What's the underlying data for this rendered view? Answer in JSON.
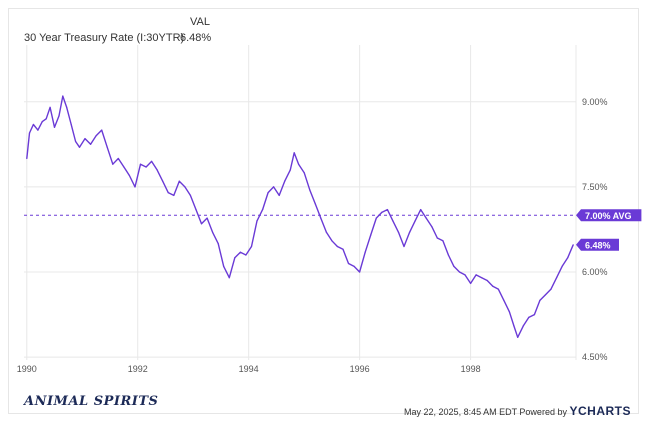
{
  "header": {
    "col_label": "VAL",
    "series_name": "30 Year Treasury Rate (I:30YTR)",
    "series_value": "6.48%"
  },
  "footer": {
    "brand": "ANIMAL SPIRITS",
    "timestamp": "May 22, 2025, 8:45 AM EDT Powered by",
    "powered_by_logo": "YCHARTS"
  },
  "colors": {
    "series": "#6a3ad6",
    "grid": "#e8e8e8",
    "axis_text": "#555555",
    "badge_bg": "#6a3ad6",
    "badge_text": "#ffffff"
  },
  "chart_data": {
    "type": "line",
    "title": "",
    "xlabel": "",
    "ylabel": "",
    "xlim": [
      1989.95,
      1999.9
    ],
    "ylim": [
      4.45,
      10.0
    ],
    "x_ticks": [
      {
        "value": 1990,
        "label": "1990"
      },
      {
        "value": 1992,
        "label": "1992"
      },
      {
        "value": 1994,
        "label": "1994"
      },
      {
        "value": 1996,
        "label": "1996"
      },
      {
        "value": 1998,
        "label": "1998"
      }
    ],
    "y_ticks": [
      {
        "value": 4.5,
        "label": "4.50%"
      },
      {
        "value": 6.0,
        "label": "6.00%"
      },
      {
        "value": 7.5,
        "label": "7.50%"
      },
      {
        "value": 9.0,
        "label": "9.00%"
      }
    ],
    "grid": true,
    "average": {
      "value": 7.0,
      "label": "7.00% AVG"
    },
    "last_value": {
      "value": 6.48,
      "label": "6.48%"
    },
    "series": [
      {
        "name": "30 Year Treasury Rate (I:30YTR)",
        "x": [
          1990.0,
          1990.05,
          1990.12,
          1990.2,
          1990.28,
          1990.35,
          1990.42,
          1990.5,
          1990.58,
          1990.65,
          1990.72,
          1990.8,
          1990.88,
          1990.95,
          1991.05,
          1991.15,
          1991.25,
          1991.35,
          1991.45,
          1991.55,
          1991.65,
          1991.75,
          1991.85,
          1991.95,
          1992.05,
          1992.15,
          1992.25,
          1992.35,
          1992.45,
          1992.55,
          1992.65,
          1992.75,
          1992.85,
          1992.95,
          1993.05,
          1993.15,
          1993.25,
          1993.35,
          1993.45,
          1993.55,
          1993.65,
          1993.75,
          1993.85,
          1993.95,
          1994.05,
          1994.15,
          1994.25,
          1994.35,
          1994.45,
          1994.55,
          1994.65,
          1994.75,
          1994.82,
          1994.9,
          1995.0,
          1995.1,
          1995.2,
          1995.3,
          1995.4,
          1995.5,
          1995.6,
          1995.7,
          1995.8,
          1995.9,
          1996.0,
          1996.1,
          1996.2,
          1996.3,
          1996.4,
          1996.5,
          1996.6,
          1996.7,
          1996.8,
          1996.9,
          1997.0,
          1997.1,
          1997.2,
          1997.3,
          1997.4,
          1997.5,
          1997.6,
          1997.7,
          1997.8,
          1997.9,
          1998.0,
          1998.1,
          1998.2,
          1998.3,
          1998.4,
          1998.5,
          1998.6,
          1998.7,
          1998.78,
          1998.85,
          1998.95,
          1999.05,
          1999.15,
          1999.25,
          1999.35,
          1999.45,
          1999.55,
          1999.65,
          1999.75,
          1999.85
        ],
        "values": [
          8.0,
          8.45,
          8.6,
          8.5,
          8.65,
          8.7,
          8.9,
          8.55,
          8.75,
          9.1,
          8.9,
          8.6,
          8.3,
          8.2,
          8.35,
          8.25,
          8.4,
          8.5,
          8.2,
          7.9,
          8.0,
          7.85,
          7.7,
          7.5,
          7.9,
          7.85,
          7.95,
          7.8,
          7.6,
          7.4,
          7.35,
          7.6,
          7.5,
          7.35,
          7.1,
          6.85,
          6.95,
          6.7,
          6.5,
          6.1,
          5.9,
          6.25,
          6.35,
          6.3,
          6.45,
          6.9,
          7.1,
          7.4,
          7.5,
          7.35,
          7.6,
          7.8,
          8.1,
          7.9,
          7.75,
          7.45,
          7.2,
          6.95,
          6.7,
          6.55,
          6.45,
          6.4,
          6.15,
          6.1,
          6.0,
          6.35,
          6.65,
          6.95,
          7.05,
          7.1,
          6.9,
          6.7,
          6.45,
          6.7,
          6.9,
          7.1,
          6.95,
          6.8,
          6.6,
          6.55,
          6.3,
          6.1,
          6.0,
          5.95,
          5.8,
          5.95,
          5.9,
          5.85,
          5.75,
          5.7,
          5.5,
          5.3,
          5.05,
          4.85,
          5.05,
          5.2,
          5.25,
          5.5,
          5.6,
          5.7,
          5.9,
          6.1,
          6.25,
          6.48
        ]
      }
    ]
  }
}
